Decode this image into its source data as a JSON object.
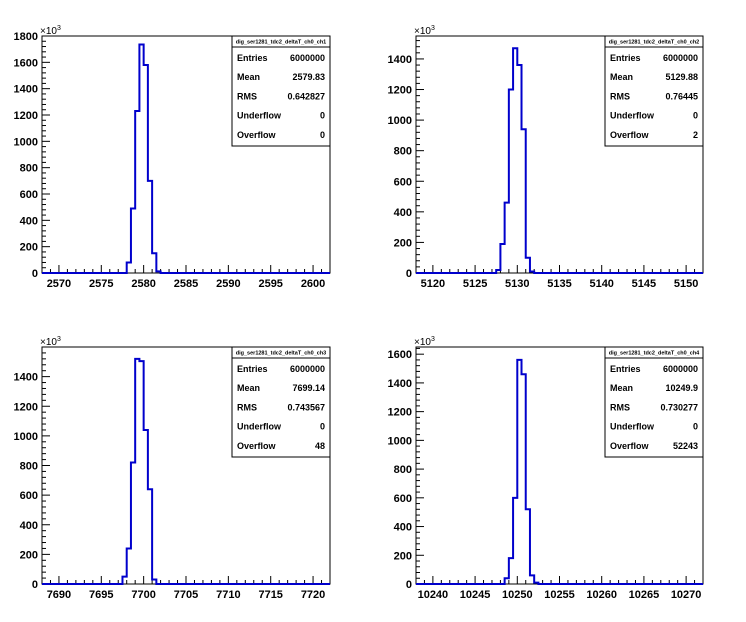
{
  "chart_data": [
    {
      "type": "histogram",
      "name": "dig_ser1281_tdc2_deltaT_ch0_ch1",
      "x_range": [
        2568,
        2602
      ],
      "y_range": [
        0,
        1800
      ],
      "y_multiplier": "×10",
      "y_multiplier_exp": "3",
      "x_ticks": [
        2570,
        2575,
        2580,
        2585,
        2590,
        2595,
        2600
      ],
      "y_ticks": [
        0,
        200,
        400,
        600,
        800,
        1000,
        1200,
        1400,
        1600,
        1800
      ],
      "bin_width": 0.5,
      "bins": [
        {
          "x": 2578.0,
          "y": 80
        },
        {
          "x": 2578.5,
          "y": 490
        },
        {
          "x": 2579.0,
          "y": 1230
        },
        {
          "x": 2579.5,
          "y": 1735
        },
        {
          "x": 2580.0,
          "y": 1580
        },
        {
          "x": 2580.5,
          "y": 700
        },
        {
          "x": 2581.0,
          "y": 150
        },
        {
          "x": 2581.5,
          "y": 12
        }
      ],
      "stats": [
        {
          "label": "Entries",
          "value": "6000000"
        },
        {
          "label": "Mean",
          "value": "2579.83"
        },
        {
          "label": "RMS",
          "value": "0.642827"
        },
        {
          "label": "Underflow",
          "value": "0"
        },
        {
          "label": "Overflow",
          "value": "0"
        }
      ]
    },
    {
      "type": "histogram",
      "name": "dig_ser1281_tdc2_deltaT_ch0_ch2",
      "x_range": [
        5118,
        5152
      ],
      "y_range": [
        0,
        1550
      ],
      "y_multiplier": "×10",
      "y_multiplier_exp": "3",
      "x_ticks": [
        5120,
        5125,
        5130,
        5135,
        5140,
        5145,
        5150
      ],
      "y_ticks": [
        0,
        200,
        400,
        600,
        800,
        1000,
        1200,
        1400
      ],
      "bin_width": 0.5,
      "bins": [
        {
          "x": 5127.5,
          "y": 20
        },
        {
          "x": 5128.0,
          "y": 190
        },
        {
          "x": 5128.5,
          "y": 460
        },
        {
          "x": 5129.0,
          "y": 1200
        },
        {
          "x": 5129.5,
          "y": 1470
        },
        {
          "x": 5130.0,
          "y": 1360
        },
        {
          "x": 5130.5,
          "y": 940
        },
        {
          "x": 5131.0,
          "y": 100
        },
        {
          "x": 5131.5,
          "y": 10
        }
      ],
      "stats": [
        {
          "label": "Entries",
          "value": "6000000"
        },
        {
          "label": "Mean",
          "value": "5129.88"
        },
        {
          "label": "RMS",
          "value": "0.76445"
        },
        {
          "label": "Underflow",
          "value": "0"
        },
        {
          "label": "Overflow",
          "value": "2"
        }
      ]
    },
    {
      "type": "histogram",
      "name": "dig_ser1281_tdc2_deltaT_ch0_ch3",
      "x_range": [
        7688,
        7722
      ],
      "y_range": [
        0,
        1600
      ],
      "y_multiplier": "×10",
      "y_multiplier_exp": "3",
      "x_ticks": [
        7690,
        7695,
        7700,
        7705,
        7710,
        7715,
        7720
      ],
      "y_ticks": [
        0,
        200,
        400,
        600,
        800,
        1000,
        1200,
        1400
      ],
      "bin_width": 0.5,
      "bins": [
        {
          "x": 7697.5,
          "y": 50
        },
        {
          "x": 7698.0,
          "y": 240
        },
        {
          "x": 7698.5,
          "y": 820
        },
        {
          "x": 7699.0,
          "y": 1520
        },
        {
          "x": 7699.5,
          "y": 1505
        },
        {
          "x": 7700.0,
          "y": 1040
        },
        {
          "x": 7700.5,
          "y": 640
        },
        {
          "x": 7701.0,
          "y": 30
        }
      ],
      "stats": [
        {
          "label": "Entries",
          "value": "6000000"
        },
        {
          "label": "Mean",
          "value": "7699.14"
        },
        {
          "label": "RMS",
          "value": "0.743567"
        },
        {
          "label": "Underflow",
          "value": "0"
        },
        {
          "label": "Overflow",
          "value": "48"
        }
      ]
    },
    {
      "type": "histogram",
      "name": "dig_ser1281_tdc2_deltaT_ch0_ch4",
      "x_range": [
        10238,
        10272
      ],
      "y_range": [
        0,
        1650
      ],
      "y_multiplier": "×10",
      "y_multiplier_exp": "3",
      "x_ticks": [
        10240,
        10245,
        10250,
        10255,
        10260,
        10265,
        10270
      ],
      "y_ticks": [
        0,
        200,
        400,
        600,
        800,
        1000,
        1200,
        1400,
        1600
      ],
      "bin_width": 0.5,
      "bins": [
        {
          "x": 10248.5,
          "y": 40
        },
        {
          "x": 10249.0,
          "y": 180
        },
        {
          "x": 10249.5,
          "y": 600
        },
        {
          "x": 10250.0,
          "y": 1560
        },
        {
          "x": 10250.5,
          "y": 1460
        },
        {
          "x": 10251.0,
          "y": 520
        },
        {
          "x": 10251.5,
          "y": 60
        },
        {
          "x": 10252.0,
          "y": 10
        }
      ],
      "stats": [
        {
          "label": "Entries",
          "value": "6000000"
        },
        {
          "label": "Mean",
          "value": "10249.9"
        },
        {
          "label": "RMS",
          "value": "0.730277"
        },
        {
          "label": "Underflow",
          "value": "0"
        },
        {
          "label": "Overflow",
          "value": "52243"
        }
      ]
    }
  ]
}
